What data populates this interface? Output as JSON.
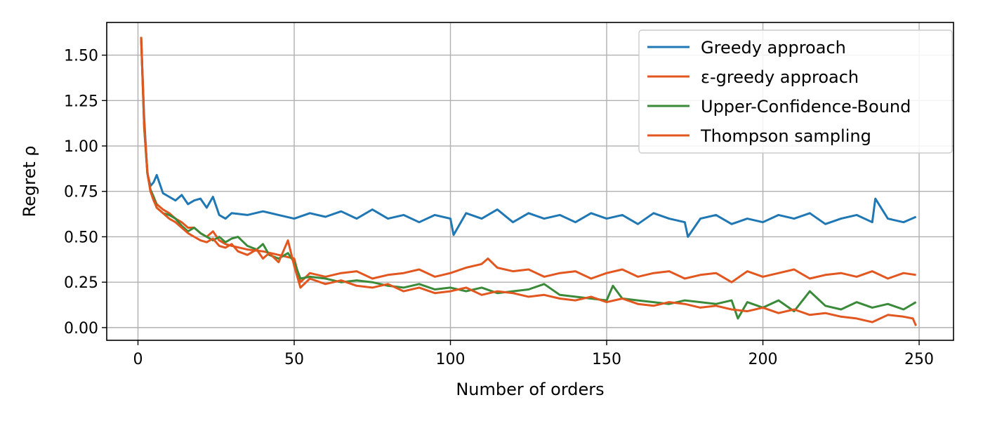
{
  "chart_data": {
    "type": "line",
    "title": "",
    "xlabel": "Number of orders",
    "ylabel": "Regret ρ",
    "xlim": [
      -10,
      261
    ],
    "ylim": [
      -0.07,
      1.68
    ],
    "xticks": [
      0,
      50,
      100,
      150,
      200,
      250
    ],
    "xtick_labels": [
      "0",
      "50",
      "100",
      "150",
      "200",
      "250"
    ],
    "yticks": [
      0.0,
      0.25,
      0.5,
      0.75,
      1.0,
      1.25,
      1.5
    ],
    "ytick_labels": [
      "0.00",
      "0.25",
      "0.50",
      "0.75",
      "1.00",
      "1.25",
      "1.50"
    ],
    "grid": true,
    "legend_position": "top-right",
    "series": [
      {
        "name": "Greedy approach",
        "color": "#1f77b4",
        "x": [
          1,
          2,
          3,
          4,
          5,
          6,
          8,
          10,
          12,
          14,
          16,
          18,
          20,
          22,
          24,
          26,
          28,
          30,
          35,
          40,
          45,
          50,
          55,
          60,
          65,
          70,
          75,
          80,
          85,
          90,
          95,
          100,
          101,
          105,
          110,
          115,
          120,
          125,
          130,
          135,
          140,
          145,
          150,
          155,
          160,
          165,
          170,
          175,
          176,
          180,
          185,
          190,
          195,
          200,
          205,
          210,
          215,
          220,
          225,
          230,
          235,
          236,
          240,
          245,
          249
        ],
        "y": [
          1.6,
          1.15,
          0.85,
          0.78,
          0.8,
          0.84,
          0.74,
          0.72,
          0.7,
          0.73,
          0.68,
          0.7,
          0.71,
          0.66,
          0.72,
          0.62,
          0.6,
          0.63,
          0.62,
          0.64,
          0.62,
          0.6,
          0.63,
          0.61,
          0.64,
          0.6,
          0.65,
          0.6,
          0.62,
          0.58,
          0.62,
          0.6,
          0.51,
          0.63,
          0.6,
          0.65,
          0.58,
          0.63,
          0.6,
          0.62,
          0.58,
          0.63,
          0.6,
          0.62,
          0.57,
          0.63,
          0.6,
          0.58,
          0.5,
          0.6,
          0.62,
          0.57,
          0.6,
          0.58,
          0.62,
          0.6,
          0.63,
          0.57,
          0.6,
          0.62,
          0.58,
          0.71,
          0.6,
          0.58,
          0.61
        ]
      },
      {
        "name": "ε-greedy approach",
        "color": "#e2561f",
        "x": [
          1,
          2,
          3,
          4,
          5,
          6,
          8,
          10,
          12,
          14,
          16,
          18,
          20,
          22,
          24,
          26,
          28,
          30,
          35,
          40,
          45,
          50,
          52,
          55,
          60,
          65,
          70,
          75,
          80,
          85,
          90,
          95,
          100,
          105,
          110,
          112,
          115,
          120,
          125,
          130,
          135,
          140,
          145,
          150,
          155,
          160,
          165,
          170,
          175,
          180,
          185,
          190,
          195,
          200,
          205,
          210,
          215,
          220,
          225,
          230,
          235,
          240,
          245,
          249
        ],
        "y": [
          1.6,
          1.1,
          0.85,
          0.75,
          0.72,
          0.68,
          0.65,
          0.63,
          0.6,
          0.58,
          0.55,
          0.55,
          0.52,
          0.5,
          0.53,
          0.48,
          0.46,
          0.45,
          0.43,
          0.42,
          0.4,
          0.38,
          0.25,
          0.3,
          0.28,
          0.3,
          0.31,
          0.27,
          0.29,
          0.3,
          0.32,
          0.28,
          0.3,
          0.33,
          0.35,
          0.38,
          0.33,
          0.31,
          0.32,
          0.28,
          0.3,
          0.31,
          0.27,
          0.3,
          0.32,
          0.28,
          0.3,
          0.31,
          0.27,
          0.29,
          0.3,
          0.25,
          0.31,
          0.28,
          0.3,
          0.32,
          0.27,
          0.29,
          0.3,
          0.28,
          0.31,
          0.27,
          0.3,
          0.29
        ]
      },
      {
        "name": "Upper-Confidence-Bound",
        "color": "#3a8a3a",
        "x": [
          1,
          2,
          3,
          4,
          5,
          6,
          8,
          10,
          12,
          14,
          16,
          18,
          20,
          22,
          24,
          26,
          28,
          30,
          32,
          35,
          38,
          40,
          42,
          45,
          48,
          50,
          52,
          55,
          60,
          65,
          70,
          75,
          80,
          85,
          90,
          95,
          100,
          105,
          110,
          115,
          120,
          125,
          130,
          135,
          140,
          145,
          150,
          152,
          155,
          160,
          165,
          170,
          175,
          180,
          185,
          190,
          192,
          195,
          200,
          205,
          210,
          215,
          220,
          225,
          230,
          235,
          240,
          245,
          249
        ],
        "y": [
          1.6,
          1.1,
          0.85,
          0.76,
          0.72,
          0.66,
          0.63,
          0.62,
          0.6,
          0.56,
          0.53,
          0.55,
          0.52,
          0.5,
          0.48,
          0.5,
          0.47,
          0.49,
          0.5,
          0.45,
          0.43,
          0.46,
          0.4,
          0.38,
          0.41,
          0.36,
          0.27,
          0.28,
          0.27,
          0.25,
          0.26,
          0.25,
          0.23,
          0.22,
          0.24,
          0.21,
          0.22,
          0.2,
          0.22,
          0.19,
          0.2,
          0.21,
          0.24,
          0.18,
          0.17,
          0.16,
          0.15,
          0.23,
          0.16,
          0.15,
          0.14,
          0.13,
          0.15,
          0.14,
          0.13,
          0.15,
          0.05,
          0.14,
          0.11,
          0.15,
          0.09,
          0.2,
          0.12,
          0.1,
          0.14,
          0.11,
          0.13,
          0.1,
          0.14
        ]
      },
      {
        "name": "Thompson sampling",
        "color": "#e2561f",
        "x": [
          1,
          2,
          3,
          4,
          5,
          6,
          8,
          10,
          12,
          14,
          16,
          18,
          20,
          22,
          24,
          26,
          28,
          30,
          32,
          35,
          38,
          40,
          42,
          45,
          48,
          50,
          52,
          55,
          60,
          65,
          70,
          75,
          80,
          85,
          90,
          95,
          100,
          105,
          110,
          115,
          120,
          125,
          130,
          135,
          140,
          145,
          150,
          155,
          160,
          165,
          170,
          175,
          180,
          185,
          190,
          195,
          200,
          205,
          210,
          215,
          220,
          225,
          230,
          235,
          240,
          245,
          248,
          249
        ],
        "y": [
          1.6,
          1.12,
          0.86,
          0.75,
          0.7,
          0.66,
          0.63,
          0.6,
          0.58,
          0.55,
          0.52,
          0.5,
          0.48,
          0.47,
          0.49,
          0.45,
          0.44,
          0.46,
          0.42,
          0.4,
          0.43,
          0.38,
          0.41,
          0.36,
          0.48,
          0.34,
          0.22,
          0.27,
          0.24,
          0.26,
          0.23,
          0.22,
          0.24,
          0.2,
          0.22,
          0.19,
          0.2,
          0.22,
          0.18,
          0.2,
          0.19,
          0.17,
          0.18,
          0.16,
          0.15,
          0.17,
          0.14,
          0.16,
          0.13,
          0.12,
          0.14,
          0.13,
          0.11,
          0.12,
          0.1,
          0.09,
          0.11,
          0.08,
          0.1,
          0.07,
          0.08,
          0.06,
          0.05,
          0.03,
          0.07,
          0.06,
          0.05,
          0.01
        ]
      }
    ]
  }
}
